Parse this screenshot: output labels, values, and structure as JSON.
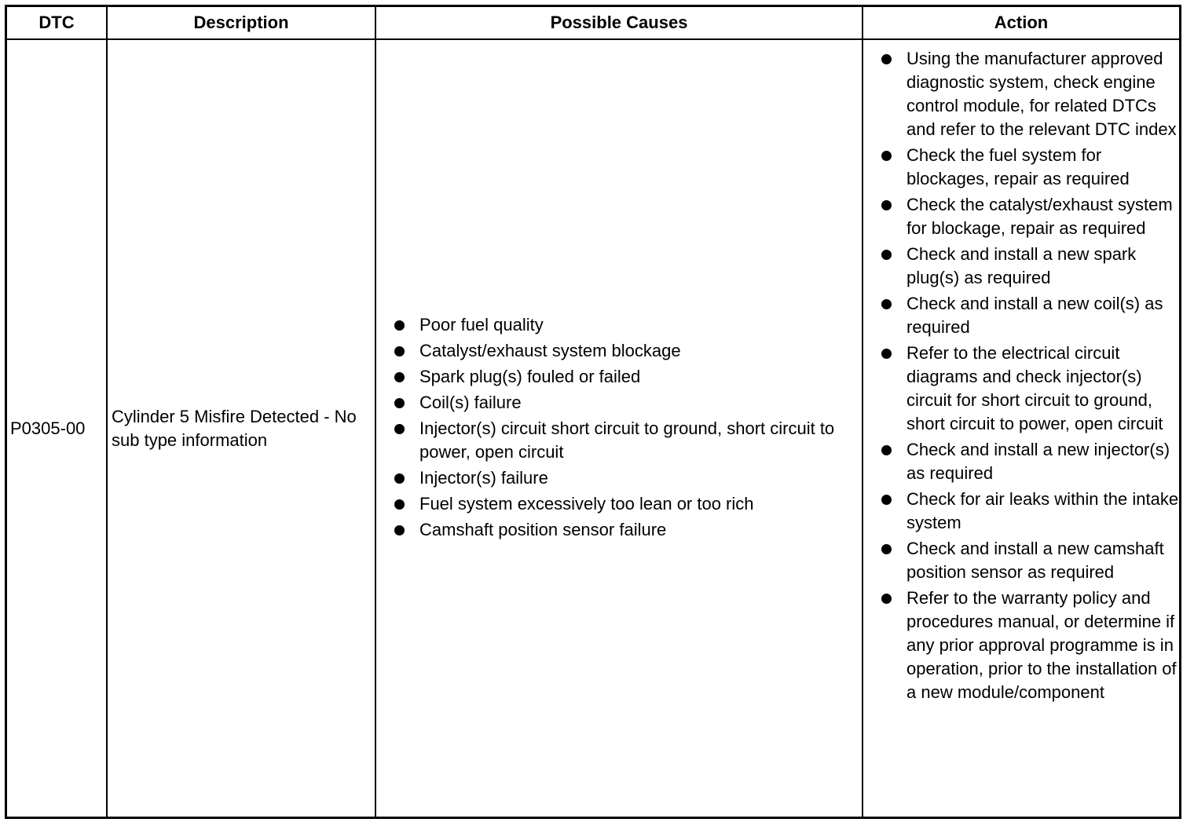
{
  "headers": {
    "dtc": "DTC",
    "description": "Description",
    "causes": "Possible Causes",
    "action": "Action"
  },
  "row": {
    "dtc": "P0305-00",
    "description": "Cylinder 5 Misfire Detected - No sub type information",
    "causes": [
      "Poor fuel quality",
      "Catalyst/exhaust system blockage",
      "Spark plug(s) fouled or failed",
      "Coil(s) failure",
      "Injector(s) circuit short circuit to ground, short circuit to power, open circuit",
      "Injector(s) failure",
      "Fuel system excessively too lean or too rich",
      "Camshaft position sensor failure"
    ],
    "actions": [
      "Using the manufacturer approved diagnostic system, check engine control module, for related DTCs and refer to the relevant DTC index",
      "Check the fuel system for blockages, repair as required",
      "Check the catalyst/exhaust system for blockage, repair as required",
      "Check and install a new spark plug(s) as required",
      "Check and install a new coil(s) as required",
      "Refer to the electrical circuit diagrams and check injector(s) circuit for short circuit to ground, short circuit to power, open circuit",
      "Check and install a new injector(s) as required",
      "Check for air leaks within the intake system",
      "Check and install a new camshaft position sensor as required",
      "Refer to the warranty policy and procedures manual, or determine if any prior approval programme is in operation, prior to the installation of a new module/component"
    ]
  }
}
